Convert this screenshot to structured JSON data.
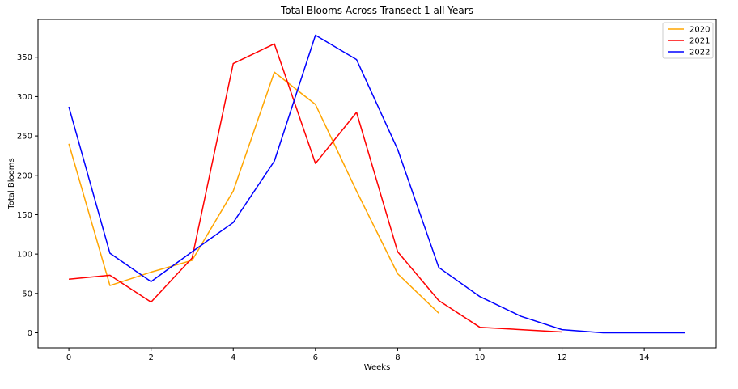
{
  "chart_data": {
    "type": "line",
    "title": "Total Blooms Across Transect 1 all Years",
    "xlabel": "Weeks",
    "ylabel": "Total Blooms",
    "xlim": [
      -0.75,
      15.75
    ],
    "ylim": [
      -19,
      398
    ],
    "xticks": [
      0,
      2,
      4,
      6,
      8,
      10,
      12,
      14
    ],
    "yticks": [
      0,
      50,
      100,
      150,
      200,
      250,
      300,
      350
    ],
    "grid": false,
    "legend": "top-right",
    "series": [
      {
        "name": "2020",
        "color": "#FFA500",
        "x": [
          0,
          1,
          2,
          3,
          4,
          5,
          6,
          7,
          8,
          9
        ],
        "values": [
          240,
          60,
          77,
          92,
          180,
          331,
          290,
          180,
          75,
          25
        ]
      },
      {
        "name": "2021",
        "color": "#FF0000",
        "x": [
          0,
          1,
          2,
          3,
          4,
          5,
          6,
          7,
          8,
          9,
          10,
          11,
          12
        ],
        "values": [
          68,
          73,
          39,
          95,
          342,
          367,
          215,
          280,
          103,
          41,
          7,
          4,
          1
        ]
      },
      {
        "name": "2022",
        "color": "#0000FF",
        "x": [
          0,
          1,
          2,
          3,
          4,
          5,
          6,
          7,
          8,
          9,
          10,
          11,
          12,
          13,
          14,
          15
        ],
        "values": [
          287,
          101,
          65,
          103,
          140,
          218,
          378,
          347,
          233,
          83,
          46,
          21,
          4,
          0,
          0,
          0
        ]
      }
    ]
  }
}
